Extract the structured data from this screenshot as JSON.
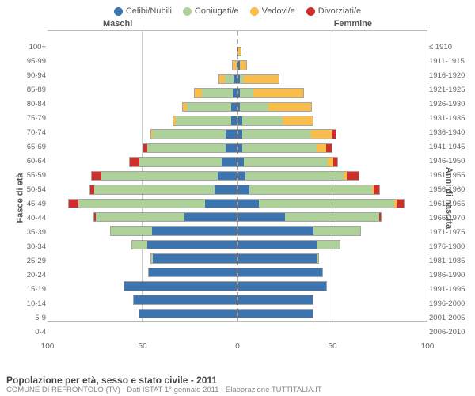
{
  "chart": {
    "type": "population-pyramid",
    "legend": [
      {
        "label": "Celibi/Nubili",
        "color": "#3b74af"
      },
      {
        "label": "Coniugati/e",
        "color": "#aed199"
      },
      {
        "label": "Vedovi/e",
        "color": "#f9bd4b"
      },
      {
        "label": "Divorziati/e",
        "color": "#cf2f2a"
      }
    ],
    "genderLeft": "Maschi",
    "genderRight": "Femmine",
    "yAxisLeftTitle": "Fasce di età",
    "yAxisRightTitle": "Anni di nascita",
    "xmax": 100,
    "xTicks": [
      "100",
      "50",
      "0",
      "50",
      "100"
    ],
    "ageLabels": [
      "100+",
      "95-99",
      "90-94",
      "85-89",
      "80-84",
      "75-79",
      "70-74",
      "65-69",
      "60-64",
      "55-59",
      "50-54",
      "45-49",
      "40-44",
      "35-39",
      "30-34",
      "25-29",
      "20-24",
      "15-19",
      "10-14",
      "5-9",
      "0-4"
    ],
    "yearLabels": [
      "≤ 1910",
      "1911-1915",
      "1916-1920",
      "1921-1925",
      "1926-1930",
      "1931-1935",
      "1936-1940",
      "1941-1945",
      "1946-1950",
      "1951-1955",
      "1956-1960",
      "1961-1965",
      "1966-1970",
      "1971-1975",
      "1976-1980",
      "1981-1985",
      "1986-1990",
      "1991-1995",
      "1996-2000",
      "2001-2005",
      "2006-2010"
    ],
    "rows": [
      {
        "m": [
          0,
          0,
          0,
          0
        ],
        "f": [
          0,
          0,
          0,
          0
        ]
      },
      {
        "m": [
          0,
          0,
          0,
          0
        ],
        "f": [
          0,
          0,
          2,
          0
        ]
      },
      {
        "m": [
          0,
          0,
          3,
          0
        ],
        "f": [
          1,
          0,
          4,
          0
        ]
      },
      {
        "m": [
          2,
          5,
          3,
          0
        ],
        "f": [
          1,
          2,
          19,
          0
        ]
      },
      {
        "m": [
          2,
          17,
          4,
          0
        ],
        "f": [
          1,
          7,
          27,
          0
        ]
      },
      {
        "m": [
          3,
          24,
          2,
          0
        ],
        "f": [
          1,
          15,
          23,
          0
        ]
      },
      {
        "m": [
          3,
          30,
          1,
          0
        ],
        "f": [
          2,
          22,
          16,
          0
        ]
      },
      {
        "m": [
          6,
          39,
          1,
          0
        ],
        "f": [
          2,
          37,
          11,
          2
        ]
      },
      {
        "m": [
          6,
          42,
          0,
          2
        ],
        "f": [
          2,
          40,
          5,
          3
        ]
      },
      {
        "m": [
          8,
          44,
          0,
          5
        ],
        "f": [
          3,
          45,
          3,
          2
        ]
      },
      {
        "m": [
          10,
          62,
          0,
          5
        ],
        "f": [
          4,
          52,
          2,
          6
        ]
      },
      {
        "m": [
          12,
          64,
          0,
          2
        ],
        "f": [
          6,
          65,
          1,
          3
        ]
      },
      {
        "m": [
          17,
          67,
          0,
          5
        ],
        "f": [
          11,
          72,
          1,
          4
        ]
      },
      {
        "m": [
          28,
          47,
          0,
          1
        ],
        "f": [
          25,
          50,
          0,
          1
        ]
      },
      {
        "m": [
          45,
          22,
          0,
          0
        ],
        "f": [
          40,
          25,
          0,
          0
        ]
      },
      {
        "m": [
          48,
          8,
          0,
          0
        ],
        "f": [
          42,
          12,
          0,
          0
        ]
      },
      {
        "m": [
          45,
          1,
          0,
          0
        ],
        "f": [
          42,
          1,
          0,
          0
        ]
      },
      {
        "m": [
          47,
          0,
          0,
          0
        ],
        "f": [
          45,
          0,
          0,
          0
        ]
      },
      {
        "m": [
          60,
          0,
          0,
          0
        ],
        "f": [
          47,
          0,
          0,
          0
        ]
      },
      {
        "m": [
          55,
          0,
          0,
          0
        ],
        "f": [
          40,
          0,
          0,
          0
        ]
      },
      {
        "m": [
          52,
          0,
          0,
          0
        ],
        "f": [
          40,
          0,
          0,
          0
        ]
      }
    ],
    "footerTitle": "Popolazione per età, sesso e stato civile - 2011",
    "footerSub": "COMUNE DI REFRONTOLO (TV) - Dati ISTAT 1° gennaio 2011 - Elaborazione TUTTITALIA.IT"
  }
}
